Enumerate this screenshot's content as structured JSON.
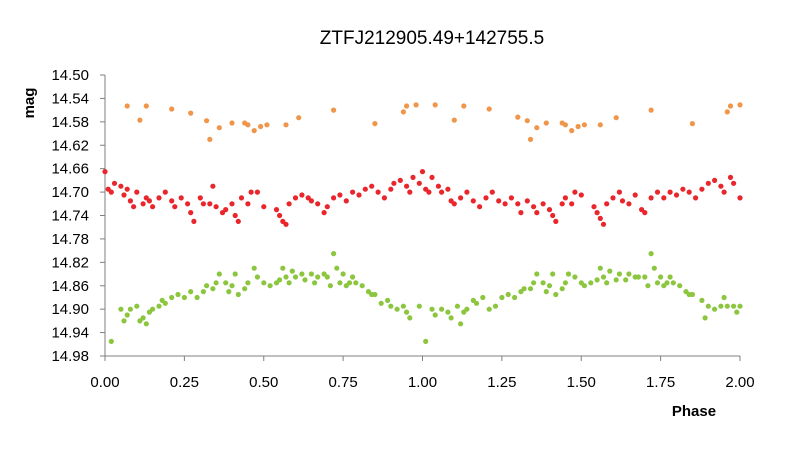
{
  "chart_data": {
    "type": "scatter",
    "title": "ZTFJ212905.49+142755.5",
    "xlabel": "Phase",
    "ylabel": "mag",
    "xlim": [
      0.0,
      2.0
    ],
    "ylim": [
      14.5,
      14.98
    ],
    "y_inverted": true,
    "grid": false,
    "legend": "none",
    "xticks": [
      "0.00",
      "0.25",
      "0.50",
      "0.75",
      "1.00",
      "1.25",
      "1.50",
      "1.75",
      "2.00"
    ],
    "yticks": [
      "14.50",
      "14.54",
      "14.58",
      "14.62",
      "14.66",
      "14.70",
      "14.74",
      "14.78",
      "14.82",
      "14.86",
      "14.90",
      "14.94",
      "14.98"
    ],
    "series": [
      {
        "color": "#F0964A",
        "points": [
          [
            0.07,
            14.553
          ],
          [
            0.11,
            14.577
          ],
          [
            0.13,
            14.553
          ],
          [
            0.21,
            14.558
          ],
          [
            0.27,
            14.565
          ],
          [
            0.32,
            14.578
          ],
          [
            0.33,
            14.61
          ],
          [
            0.36,
            14.59
          ],
          [
            0.4,
            14.582
          ],
          [
            0.44,
            14.582
          ],
          [
            0.45,
            14.585
          ],
          [
            0.47,
            14.595
          ],
          [
            0.49,
            14.588
          ],
          [
            0.51,
            14.585
          ],
          [
            0.57,
            14.585
          ],
          [
            0.61,
            14.573
          ],
          [
            0.72,
            14.56
          ],
          [
            0.85,
            14.583
          ],
          [
            0.94,
            14.563
          ],
          [
            0.95,
            14.553
          ],
          [
            0.98,
            14.551
          ],
          [
            1.04,
            14.551
          ],
          [
            1.1,
            14.577
          ],
          [
            1.13,
            14.553
          ],
          [
            1.21,
            14.558
          ],
          [
            1.3,
            14.572
          ],
          [
            1.33,
            14.578
          ],
          [
            1.34,
            14.61
          ],
          [
            1.36,
            14.59
          ],
          [
            1.39,
            14.582
          ],
          [
            1.44,
            14.582
          ],
          [
            1.45,
            14.585
          ],
          [
            1.47,
            14.595
          ],
          [
            1.49,
            14.588
          ],
          [
            1.51,
            14.585
          ],
          [
            1.56,
            14.585
          ],
          [
            1.61,
            14.573
          ],
          [
            1.72,
            14.56
          ],
          [
            1.85,
            14.583
          ],
          [
            1.96,
            14.563
          ],
          [
            1.97,
            14.553
          ],
          [
            2.0,
            14.551
          ]
        ]
      },
      {
        "color": "#E8262B",
        "points": [
          [
            0.0,
            14.665
          ],
          [
            0.01,
            14.695
          ],
          [
            0.02,
            14.7
          ],
          [
            0.03,
            14.685
          ],
          [
            0.05,
            14.69
          ],
          [
            0.06,
            14.705
          ],
          [
            0.07,
            14.695
          ],
          [
            0.08,
            14.715
          ],
          [
            0.09,
            14.725
          ],
          [
            0.1,
            14.7
          ],
          [
            0.12,
            14.72
          ],
          [
            0.13,
            14.71
          ],
          [
            0.14,
            14.715
          ],
          [
            0.15,
            14.725
          ],
          [
            0.17,
            14.71
          ],
          [
            0.19,
            14.7
          ],
          [
            0.21,
            14.715
          ],
          [
            0.22,
            14.725
          ],
          [
            0.24,
            14.71
          ],
          [
            0.26,
            14.72
          ],
          [
            0.27,
            14.735
          ],
          [
            0.28,
            14.75
          ],
          [
            0.3,
            14.71
          ],
          [
            0.31,
            14.72
          ],
          [
            0.33,
            14.72
          ],
          [
            0.34,
            14.69
          ],
          [
            0.35,
            14.725
          ],
          [
            0.37,
            14.735
          ],
          [
            0.38,
            14.73
          ],
          [
            0.4,
            14.72
          ],
          [
            0.41,
            14.74
          ],
          [
            0.42,
            14.75
          ],
          [
            0.43,
            14.71
          ],
          [
            0.45,
            14.72
          ],
          [
            0.46,
            14.7
          ],
          [
            0.48,
            14.7
          ],
          [
            0.5,
            14.725
          ],
          [
            0.54,
            14.73
          ],
          [
            0.55,
            14.74
          ],
          [
            0.56,
            14.75
          ],
          [
            0.57,
            14.755
          ],
          [
            0.58,
            14.72
          ],
          [
            0.6,
            14.71
          ],
          [
            0.62,
            14.705
          ],
          [
            0.64,
            14.71
          ],
          [
            0.65,
            14.715
          ],
          [
            0.67,
            14.72
          ],
          [
            0.69,
            14.735
          ],
          [
            0.7,
            14.725
          ],
          [
            0.72,
            14.71
          ],
          [
            0.74,
            14.705
          ],
          [
            0.76,
            14.715
          ],
          [
            0.78,
            14.7
          ],
          [
            0.8,
            14.705
          ],
          [
            0.82,
            14.695
          ],
          [
            0.84,
            14.69
          ],
          [
            0.86,
            14.7
          ],
          [
            0.88,
            14.71
          ],
          [
            0.9,
            14.695
          ],
          [
            0.91,
            14.685
          ],
          [
            0.93,
            14.68
          ],
          [
            0.95,
            14.69
          ],
          [
            0.96,
            14.7
          ],
          [
            0.97,
            14.675
          ],
          [
            0.99,
            14.685
          ],
          [
            1.0,
            14.665
          ],
          [
            1.01,
            14.695
          ],
          [
            1.02,
            14.7
          ],
          [
            1.03,
            14.675
          ],
          [
            1.05,
            14.69
          ],
          [
            1.06,
            14.7
          ],
          [
            1.08,
            14.695
          ],
          [
            1.09,
            14.715
          ],
          [
            1.1,
            14.72
          ],
          [
            1.12,
            14.71
          ],
          [
            1.14,
            14.7
          ],
          [
            1.16,
            14.715
          ],
          [
            1.18,
            14.725
          ],
          [
            1.2,
            14.71
          ],
          [
            1.22,
            14.7
          ],
          [
            1.24,
            14.715
          ],
          [
            1.26,
            14.72
          ],
          [
            1.28,
            14.71
          ],
          [
            1.3,
            14.72
          ],
          [
            1.31,
            14.735
          ],
          [
            1.33,
            14.715
          ],
          [
            1.35,
            14.725
          ],
          [
            1.36,
            14.735
          ],
          [
            1.38,
            14.72
          ],
          [
            1.4,
            14.73
          ],
          [
            1.41,
            14.74
          ],
          [
            1.42,
            14.75
          ],
          [
            1.44,
            14.72
          ],
          [
            1.45,
            14.71
          ],
          [
            1.47,
            14.72
          ],
          [
            1.48,
            14.7
          ],
          [
            1.5,
            14.705
          ],
          [
            1.54,
            14.725
          ],
          [
            1.55,
            14.735
          ],
          [
            1.56,
            14.745
          ],
          [
            1.57,
            14.755
          ],
          [
            1.58,
            14.72
          ],
          [
            1.6,
            14.71
          ],
          [
            1.62,
            14.7
          ],
          [
            1.63,
            14.715
          ],
          [
            1.65,
            14.72
          ],
          [
            1.67,
            14.705
          ],
          [
            1.69,
            14.73
          ],
          [
            1.7,
            14.735
          ],
          [
            1.72,
            14.71
          ],
          [
            1.74,
            14.7
          ],
          [
            1.76,
            14.71
          ],
          [
            1.78,
            14.7
          ],
          [
            1.8,
            14.705
          ],
          [
            1.82,
            14.695
          ],
          [
            1.84,
            14.7
          ],
          [
            1.86,
            14.71
          ],
          [
            1.88,
            14.695
          ],
          [
            1.9,
            14.685
          ],
          [
            1.92,
            14.68
          ],
          [
            1.94,
            14.69
          ],
          [
            1.95,
            14.7
          ],
          [
            1.97,
            14.675
          ],
          [
            1.98,
            14.685
          ],
          [
            2.0,
            14.71
          ]
        ]
      },
      {
        "color": "#8CC63F",
        "points": [
          [
            0.02,
            14.955
          ],
          [
            0.05,
            14.9
          ],
          [
            0.06,
            14.92
          ],
          [
            0.07,
            14.91
          ],
          [
            0.08,
            14.9
          ],
          [
            0.1,
            14.895
          ],
          [
            0.11,
            14.92
          ],
          [
            0.12,
            14.915
          ],
          [
            0.13,
            14.925
          ],
          [
            0.14,
            14.905
          ],
          [
            0.15,
            14.9
          ],
          [
            0.17,
            14.895
          ],
          [
            0.18,
            14.885
          ],
          [
            0.19,
            14.89
          ],
          [
            0.21,
            14.88
          ],
          [
            0.23,
            14.875
          ],
          [
            0.25,
            14.88
          ],
          [
            0.27,
            14.87
          ],
          [
            0.29,
            14.88
          ],
          [
            0.31,
            14.87
          ],
          [
            0.32,
            14.86
          ],
          [
            0.34,
            14.865
          ],
          [
            0.35,
            14.855
          ],
          [
            0.36,
            14.84
          ],
          [
            0.38,
            14.855
          ],
          [
            0.39,
            14.87
          ],
          [
            0.4,
            14.86
          ],
          [
            0.41,
            14.84
          ],
          [
            0.42,
            14.875
          ],
          [
            0.44,
            14.865
          ],
          [
            0.45,
            14.855
          ],
          [
            0.47,
            14.83
          ],
          [
            0.48,
            14.845
          ],
          [
            0.5,
            14.855
          ],
          [
            0.52,
            14.86
          ],
          [
            0.54,
            14.855
          ],
          [
            0.55,
            14.85
          ],
          [
            0.56,
            14.83
          ],
          [
            0.57,
            14.845
          ],
          [
            0.58,
            14.855
          ],
          [
            0.59,
            14.835
          ],
          [
            0.6,
            14.845
          ],
          [
            0.62,
            14.84
          ],
          [
            0.63,
            14.85
          ],
          [
            0.65,
            14.84
          ],
          [
            0.66,
            14.855
          ],
          [
            0.67,
            14.845
          ],
          [
            0.69,
            14.84
          ],
          [
            0.7,
            14.845
          ],
          [
            0.71,
            14.86
          ],
          [
            0.72,
            14.805
          ],
          [
            0.73,
            14.83
          ],
          [
            0.74,
            14.855
          ],
          [
            0.75,
            14.84
          ],
          [
            0.76,
            14.86
          ],
          [
            0.77,
            14.855
          ],
          [
            0.78,
            14.845
          ],
          [
            0.79,
            14.855
          ],
          [
            0.81,
            14.86
          ],
          [
            0.83,
            14.87
          ],
          [
            0.84,
            14.875
          ],
          [
            0.85,
            14.875
          ],
          [
            0.87,
            14.89
          ],
          [
            0.89,
            14.885
          ],
          [
            0.9,
            14.895
          ],
          [
            0.92,
            14.9
          ],
          [
            0.94,
            14.895
          ],
          [
            0.95,
            14.905
          ],
          [
            0.96,
            14.915
          ],
          [
            0.99,
            14.895
          ],
          [
            1.01,
            14.955
          ],
          [
            1.03,
            14.9
          ],
          [
            1.04,
            14.91
          ],
          [
            1.06,
            14.9
          ],
          [
            1.08,
            14.905
          ],
          [
            1.09,
            14.915
          ],
          [
            1.11,
            14.895
          ],
          [
            1.12,
            14.925
          ],
          [
            1.13,
            14.905
          ],
          [
            1.14,
            14.9
          ],
          [
            1.16,
            14.885
          ],
          [
            1.17,
            14.89
          ],
          [
            1.19,
            14.88
          ],
          [
            1.21,
            14.9
          ],
          [
            1.23,
            14.895
          ],
          [
            1.25,
            14.88
          ],
          [
            1.27,
            14.875
          ],
          [
            1.29,
            14.88
          ],
          [
            1.31,
            14.87
          ],
          [
            1.32,
            14.865
          ],
          [
            1.34,
            14.865
          ],
          [
            1.35,
            14.855
          ],
          [
            1.36,
            14.84
          ],
          [
            1.38,
            14.855
          ],
          [
            1.39,
            14.87
          ],
          [
            1.4,
            14.86
          ],
          [
            1.41,
            14.84
          ],
          [
            1.42,
            14.875
          ],
          [
            1.44,
            14.865
          ],
          [
            1.45,
            14.855
          ],
          [
            1.46,
            14.84
          ],
          [
            1.48,
            14.845
          ],
          [
            1.5,
            14.855
          ],
          [
            1.51,
            14.86
          ],
          [
            1.53,
            14.855
          ],
          [
            1.55,
            14.85
          ],
          [
            1.56,
            14.83
          ],
          [
            1.57,
            14.845
          ],
          [
            1.58,
            14.855
          ],
          [
            1.59,
            14.835
          ],
          [
            1.61,
            14.85
          ],
          [
            1.62,
            14.84
          ],
          [
            1.64,
            14.85
          ],
          [
            1.65,
            14.84
          ],
          [
            1.67,
            14.845
          ],
          [
            1.68,
            14.845
          ],
          [
            1.7,
            14.845
          ],
          [
            1.71,
            14.86
          ],
          [
            1.72,
            14.805
          ],
          [
            1.73,
            14.83
          ],
          [
            1.74,
            14.855
          ],
          [
            1.75,
            14.845
          ],
          [
            1.76,
            14.86
          ],
          [
            1.77,
            14.855
          ],
          [
            1.78,
            14.845
          ],
          [
            1.79,
            14.855
          ],
          [
            1.81,
            14.86
          ],
          [
            1.83,
            14.87
          ],
          [
            1.84,
            14.875
          ],
          [
            1.85,
            14.875
          ],
          [
            1.88,
            14.885
          ],
          [
            1.89,
            14.915
          ],
          [
            1.9,
            14.895
          ],
          [
            1.92,
            14.9
          ],
          [
            1.94,
            14.895
          ],
          [
            1.95,
            14.88
          ],
          [
            1.96,
            14.895
          ],
          [
            1.98,
            14.895
          ],
          [
            1.99,
            14.905
          ],
          [
            2.0,
            14.895
          ]
        ]
      }
    ]
  }
}
